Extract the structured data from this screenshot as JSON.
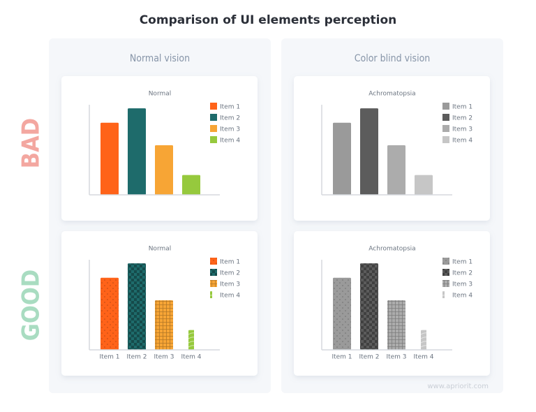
{
  "title": "Comparison of UI elements perception",
  "columns": [
    "Normal vision",
    "Color blind vision"
  ],
  "rows": [
    {
      "label": "BAD",
      "color": "#f3a7a0"
    },
    {
      "label": "GOOD",
      "color": "#a9dcc1"
    }
  ],
  "watermark": "www.apriorit.com",
  "chart_data": [
    {
      "type": "bar",
      "title": "Normal",
      "categories": [
        "Item 1",
        "Item 2",
        "Item 3",
        "Item 4"
      ],
      "values": [
        80,
        96,
        55,
        22
      ],
      "colors": [
        "#ff6319",
        "#1e6b6b",
        "#f7a535",
        "#96c93d"
      ],
      "ylim": [
        0,
        100
      ],
      "legend": "right",
      "show_x_labels": false
    },
    {
      "type": "bar",
      "title": "Achromatopsia",
      "categories": [
        "Item 1",
        "Item 2",
        "Item 3",
        "Item 4"
      ],
      "values": [
        80,
        96,
        55,
        22
      ],
      "colors": [
        "#9a9a9a",
        "#5c5c5c",
        "#acacac",
        "#c6c6c6"
      ],
      "ylim": [
        0,
        100
      ],
      "legend": "right",
      "show_x_labels": false
    },
    {
      "type": "bar",
      "title": "Normal",
      "categories": [
        "Item 1",
        "Item 2",
        "Item 3",
        "Item 4"
      ],
      "values": [
        80,
        96,
        55,
        22
      ],
      "colors": [
        "#ff6319",
        "#1e6b6b",
        "#f7a535",
        "#96c93d"
      ],
      "patterns": [
        "dots",
        "checker",
        "grid",
        "waves"
      ],
      "ylim": [
        0,
        100
      ],
      "legend": "right",
      "show_x_labels": true
    },
    {
      "type": "bar",
      "title": "Achromatopsia",
      "categories": [
        "Item 1",
        "Item 2",
        "Item 3",
        "Item 4"
      ],
      "values": [
        80,
        96,
        55,
        22
      ],
      "colors": [
        "#9a9a9a",
        "#5c5c5c",
        "#acacac",
        "#c6c6c6"
      ],
      "patterns": [
        "dots",
        "checker",
        "grid",
        "waves"
      ],
      "ylim": [
        0,
        100
      ],
      "legend": "right",
      "show_x_labels": true
    }
  ]
}
